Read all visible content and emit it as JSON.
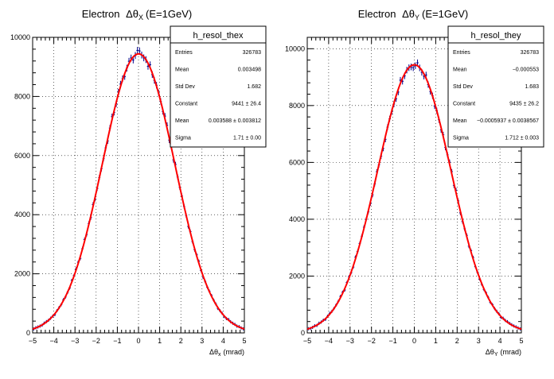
{
  "chart_data": [
    {
      "type": "scatter",
      "title_main": "Electron",
      "title_symbol": "Δθ",
      "title_sub": "X",
      "title_tail": "(E=1GeV)",
      "xlabel_symbol": "Δθ",
      "xlabel_sub": "x",
      "xlabel_unit": "(mrad)",
      "ylabel": "",
      "xlim": [
        -5,
        5
      ],
      "ylim": [
        0,
        10000
      ],
      "x_ticks": [
        "−5",
        "−4",
        "−3",
        "−2",
        "−1",
        "0",
        "1",
        "2",
        "3",
        "4",
        "5"
      ],
      "y_ticks": [
        "0",
        "2000",
        "4000",
        "6000",
        "8000",
        "10000"
      ],
      "grid": true,
      "series": [
        {
          "kind": "histogram-points",
          "color": "#00008b",
          "mean": 0.0036,
          "sigma": 1.71,
          "amplitude": 9441
        },
        {
          "kind": "gaussian-fit",
          "color": "#ff0000",
          "mean": 0.003588,
          "sigma": 1.71,
          "amplitude": 9441
        }
      ],
      "stats": {
        "name": "h_resol_thex",
        "rows": [
          {
            "label": "Entries",
            "value": "326783"
          },
          {
            "label": "Mean",
            "value": "0.003498"
          },
          {
            "label": "Std Dev",
            "value": "1.682"
          },
          {
            "label": "Constant",
            "value": "9441 ± 26.4"
          },
          {
            "label": "Mean",
            "value": "0.003588 ± 0.003812"
          },
          {
            "label": "Sigma",
            "value": "1.71 ± 0.00"
          }
        ]
      }
    },
    {
      "type": "scatter",
      "title_main": "Electron",
      "title_symbol": "Δθ",
      "title_sub": "Y",
      "title_tail": "(E=1GeV)",
      "xlabel_symbol": "Δθ",
      "xlabel_sub": "Y",
      "xlabel_unit": "(mrad)",
      "ylabel": "",
      "xlim": [
        -5,
        5
      ],
      "ylim": [
        0,
        10400
      ],
      "x_ticks": [
        "−5",
        "−4",
        "−3",
        "−2",
        "−1",
        "0",
        "1",
        "2",
        "3",
        "4",
        "5"
      ],
      "y_ticks": [
        "0",
        "2000",
        "4000",
        "6000",
        "8000",
        "10000"
      ],
      "grid": true,
      "series": [
        {
          "kind": "histogram-points",
          "color": "#00008b",
          "mean": -0.0006,
          "sigma": 1.712,
          "amplitude": 9435
        },
        {
          "kind": "gaussian-fit",
          "color": "#ff0000",
          "mean": -0.0005937,
          "sigma": 1.712,
          "amplitude": 9435
        }
      ],
      "stats": {
        "name": "h_resol_they",
        "rows": [
          {
            "label": "Entries",
            "value": "326783"
          },
          {
            "label": "Mean",
            "value": "−0.000553"
          },
          {
            "label": "Std Dev",
            "value": "1.683"
          },
          {
            "label": "Constant",
            "value": "9435 ± 26.2"
          },
          {
            "label": "Mean",
            "value": "−0.0005937 ± 0.0038567"
          },
          {
            "label": "Sigma",
            "value": "1.712 ± 0.003"
          }
        ]
      }
    }
  ]
}
